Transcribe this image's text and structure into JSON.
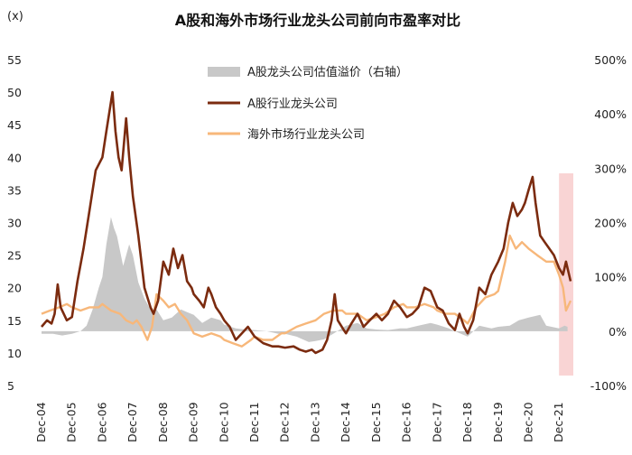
{
  "chart_data": {
    "type": "line",
    "title": "A股和海外市场行业龙头公司前向市盈率对比",
    "left_axis_unit": "(x)",
    "left_ylim": [
      5,
      55
    ],
    "left_ticks": [
      5,
      10,
      15,
      20,
      25,
      30,
      35,
      40,
      45,
      50,
      55
    ],
    "right_ylim": [
      -100,
      500
    ],
    "right_ticks": [
      "-100%",
      "0%",
      "100%",
      "200%",
      "300%",
      "400%",
      "500%"
    ],
    "right_tick_values": [
      -100,
      0,
      100,
      200,
      300,
      400,
      500
    ],
    "x_labels": [
      "Dec-04",
      "Dec-05",
      "Dec-06",
      "Dec-07",
      "Dec-08",
      "Dec-09",
      "Dec-10",
      "Dec-11",
      "Dec-12",
      "Dec-13",
      "Dec-14",
      "Dec-15",
      "Dec-16",
      "Dec-17",
      "Dec-18",
      "Dec-19",
      "Dec-20",
      "Dec-21"
    ],
    "x_range": [
      2004.92,
      2022.3
    ],
    "legend_position": "top-center",
    "highlight_region": {
      "x_start": 2021.92,
      "x_end": 2022.62,
      "color": "#f7c6c6"
    },
    "series": [
      {
        "name": "A股龙头公司估值溢价（右轴）",
        "type": "area",
        "axis": "right",
        "color": "#c8c8c8",
        "points": [
          [
            2004.92,
            -5
          ],
          [
            2005.3,
            -5
          ],
          [
            2005.6,
            -8
          ],
          [
            2005.92,
            -5
          ],
          [
            2006.2,
            0
          ],
          [
            2006.4,
            10
          ],
          [
            2006.6,
            40
          ],
          [
            2006.8,
            80
          ],
          [
            2006.92,
            100
          ],
          [
            2007.05,
            160
          ],
          [
            2007.2,
            210
          ],
          [
            2007.3,
            190
          ],
          [
            2007.4,
            175
          ],
          [
            2007.6,
            120
          ],
          [
            2007.8,
            160
          ],
          [
            2007.92,
            140
          ],
          [
            2008.1,
            90
          ],
          [
            2008.3,
            60
          ],
          [
            2008.5,
            40
          ],
          [
            2008.7,
            40
          ],
          [
            2008.92,
            20
          ],
          [
            2009.2,
            25
          ],
          [
            2009.5,
            40
          ],
          [
            2009.7,
            35
          ],
          [
            2009.92,
            30
          ],
          [
            2010.2,
            15
          ],
          [
            2010.5,
            25
          ],
          [
            2010.8,
            20
          ],
          [
            2010.92,
            12
          ],
          [
            2011.3,
            5
          ],
          [
            2011.6,
            3
          ],
          [
            2011.92,
            2
          ],
          [
            2012.3,
            0
          ],
          [
            2012.7,
            -5
          ],
          [
            2012.92,
            -5
          ],
          [
            2013.3,
            -10
          ],
          [
            2013.7,
            -20
          ],
          [
            2013.92,
            -18
          ],
          [
            2014.2,
            -15
          ],
          [
            2014.5,
            -5
          ],
          [
            2014.92,
            10
          ],
          [
            2015.3,
            15
          ],
          [
            2015.6,
            5
          ],
          [
            2015.92,
            3
          ],
          [
            2016.3,
            2
          ],
          [
            2016.7,
            5
          ],
          [
            2016.92,
            5
          ],
          [
            2017.3,
            10
          ],
          [
            2017.7,
            15
          ],
          [
            2017.92,
            12
          ],
          [
            2018.3,
            5
          ],
          [
            2018.7,
            -5
          ],
          [
            2018.92,
            -10
          ],
          [
            2019.3,
            10
          ],
          [
            2019.7,
            5
          ],
          [
            2019.92,
            8
          ],
          [
            2020.3,
            10
          ],
          [
            2020.6,
            20
          ],
          [
            2020.92,
            25
          ],
          [
            2021.3,
            30
          ],
          [
            2021.5,
            10
          ],
          [
            2021.92,
            5
          ],
          [
            2022.1,
            10
          ],
          [
            2022.2,
            8
          ]
        ]
      },
      {
        "name": "A股行业龙头公司",
        "type": "line",
        "axis": "left",
        "color": "#7b2b0f",
        "points": [
          [
            2004.92,
            14
          ],
          [
            2005.1,
            15
          ],
          [
            2005.25,
            14.5
          ],
          [
            2005.35,
            16
          ],
          [
            2005.45,
            20.5
          ],
          [
            2005.55,
            17
          ],
          [
            2005.75,
            15
          ],
          [
            2005.92,
            15.5
          ],
          [
            2006.1,
            21
          ],
          [
            2006.3,
            26
          ],
          [
            2006.5,
            32
          ],
          [
            2006.7,
            38
          ],
          [
            2006.92,
            40
          ],
          [
            2007.05,
            44
          ],
          [
            2007.15,
            47
          ],
          [
            2007.25,
            50
          ],
          [
            2007.35,
            44
          ],
          [
            2007.45,
            40
          ],
          [
            2007.55,
            38
          ],
          [
            2007.7,
            46
          ],
          [
            2007.8,
            40
          ],
          [
            2007.92,
            34
          ],
          [
            2008.1,
            28
          ],
          [
            2008.3,
            20
          ],
          [
            2008.5,
            17
          ],
          [
            2008.6,
            16
          ],
          [
            2008.75,
            18
          ],
          [
            2008.92,
            24
          ],
          [
            2009.1,
            22
          ],
          [
            2009.25,
            26
          ],
          [
            2009.4,
            23
          ],
          [
            2009.55,
            25
          ],
          [
            2009.7,
            21
          ],
          [
            2009.85,
            20
          ],
          [
            2009.92,
            19
          ],
          [
            2010.1,
            18
          ],
          [
            2010.25,
            17
          ],
          [
            2010.4,
            20
          ],
          [
            2010.5,
            19
          ],
          [
            2010.65,
            17
          ],
          [
            2010.8,
            16
          ],
          [
            2010.92,
            15
          ],
          [
            2011.1,
            14
          ],
          [
            2011.3,
            12
          ],
          [
            2011.5,
            13
          ],
          [
            2011.7,
            14
          ],
          [
            2011.92,
            12.5
          ],
          [
            2012.2,
            11.5
          ],
          [
            2012.5,
            11
          ],
          [
            2012.7,
            11
          ],
          [
            2012.92,
            10.8
          ],
          [
            2013.2,
            11
          ],
          [
            2013.4,
            10.5
          ],
          [
            2013.6,
            10.2
          ],
          [
            2013.8,
            10.5
          ],
          [
            2013.92,
            10
          ],
          [
            2014.15,
            10.5
          ],
          [
            2014.3,
            12
          ],
          [
            2014.45,
            15
          ],
          [
            2014.55,
            19
          ],
          [
            2014.65,
            15
          ],
          [
            2014.85,
            13.5
          ],
          [
            2014.92,
            13
          ],
          [
            2015.1,
            14.5
          ],
          [
            2015.3,
            16
          ],
          [
            2015.5,
            14
          ],
          [
            2015.7,
            15
          ],
          [
            2015.92,
            16
          ],
          [
            2016.1,
            15
          ],
          [
            2016.3,
            16
          ],
          [
            2016.5,
            18
          ],
          [
            2016.7,
            17
          ],
          [
            2016.92,
            15.5
          ],
          [
            2017.1,
            16
          ],
          [
            2017.3,
            17
          ],
          [
            2017.5,
            20
          ],
          [
            2017.7,
            19.5
          ],
          [
            2017.92,
            17
          ],
          [
            2018.1,
            16.5
          ],
          [
            2018.3,
            14.5
          ],
          [
            2018.5,
            13.5
          ],
          [
            2018.65,
            16
          ],
          [
            2018.8,
            14
          ],
          [
            2018.92,
            13
          ],
          [
            2019.1,
            15
          ],
          [
            2019.3,
            20
          ],
          [
            2019.5,
            19
          ],
          [
            2019.7,
            22
          ],
          [
            2019.92,
            24
          ],
          [
            2020.1,
            26
          ],
          [
            2020.25,
            30
          ],
          [
            2020.4,
            33
          ],
          [
            2020.55,
            31
          ],
          [
            2020.7,
            32
          ],
          [
            2020.8,
            33
          ],
          [
            2020.92,
            35
          ],
          [
            2021.05,
            37
          ],
          [
            2021.15,
            33
          ],
          [
            2021.3,
            28
          ],
          [
            2021.45,
            27
          ],
          [
            2021.6,
            26
          ],
          [
            2021.75,
            25
          ],
          [
            2021.92,
            23
          ],
          [
            2022.05,
            22
          ],
          [
            2022.15,
            24
          ],
          [
            2022.3,
            21
          ]
        ]
      },
      {
        "name": "海外市场行业龙头公司",
        "type": "line",
        "axis": "left",
        "color": "#f7b77a",
        "points": [
          [
            2004.92,
            16
          ],
          [
            2005.2,
            16.5
          ],
          [
            2005.5,
            17
          ],
          [
            2005.75,
            17.5
          ],
          [
            2005.92,
            17
          ],
          [
            2006.2,
            16.5
          ],
          [
            2006.5,
            17
          ],
          [
            2006.8,
            17
          ],
          [
            2006.92,
            17.5
          ],
          [
            2007.2,
            16.5
          ],
          [
            2007.5,
            16
          ],
          [
            2007.7,
            15
          ],
          [
            2007.92,
            14.5
          ],
          [
            2008.05,
            15
          ],
          [
            2008.2,
            14
          ],
          [
            2008.4,
            12
          ],
          [
            2008.55,
            14
          ],
          [
            2008.7,
            19
          ],
          [
            2008.92,
            18
          ],
          [
            2009.1,
            17
          ],
          [
            2009.3,
            17.5
          ],
          [
            2009.5,
            16
          ],
          [
            2009.7,
            15
          ],
          [
            2009.92,
            13
          ],
          [
            2010.2,
            12.5
          ],
          [
            2010.5,
            13
          ],
          [
            2010.8,
            12.5
          ],
          [
            2010.92,
            12
          ],
          [
            2011.2,
            11.5
          ],
          [
            2011.5,
            11
          ],
          [
            2011.8,
            12
          ],
          [
            2011.92,
            12.5
          ],
          [
            2012.2,
            12
          ],
          [
            2012.5,
            12
          ],
          [
            2012.8,
            13
          ],
          [
            2012.92,
            13
          ],
          [
            2013.3,
            14
          ],
          [
            2013.6,
            14.5
          ],
          [
            2013.92,
            15
          ],
          [
            2014.2,
            16
          ],
          [
            2014.5,
            16.5
          ],
          [
            2014.8,
            16.5
          ],
          [
            2014.92,
            16
          ],
          [
            2015.3,
            16
          ],
          [
            2015.6,
            15
          ],
          [
            2015.92,
            15.5
          ],
          [
            2016.2,
            16
          ],
          [
            2016.5,
            17
          ],
          [
            2016.8,
            17.5
          ],
          [
            2016.92,
            17
          ],
          [
            2017.2,
            17
          ],
          [
            2017.5,
            17.5
          ],
          [
            2017.8,
            17
          ],
          [
            2017.92,
            16.5
          ],
          [
            2018.2,
            16
          ],
          [
            2018.5,
            16
          ],
          [
            2018.8,
            15
          ],
          [
            2018.92,
            14.5
          ],
          [
            2019.2,
            17
          ],
          [
            2019.5,
            18.5
          ],
          [
            2019.8,
            19
          ],
          [
            2019.92,
            19.5
          ],
          [
            2020.15,
            24
          ],
          [
            2020.3,
            28
          ],
          [
            2020.5,
            26
          ],
          [
            2020.7,
            27
          ],
          [
            2020.92,
            26
          ],
          [
            2021.2,
            25
          ],
          [
            2021.5,
            24
          ],
          [
            2021.75,
            24
          ],
          [
            2021.92,
            22
          ],
          [
            2022.05,
            20
          ],
          [
            2022.15,
            16.5
          ],
          [
            2022.3,
            18
          ]
        ]
      }
    ]
  }
}
